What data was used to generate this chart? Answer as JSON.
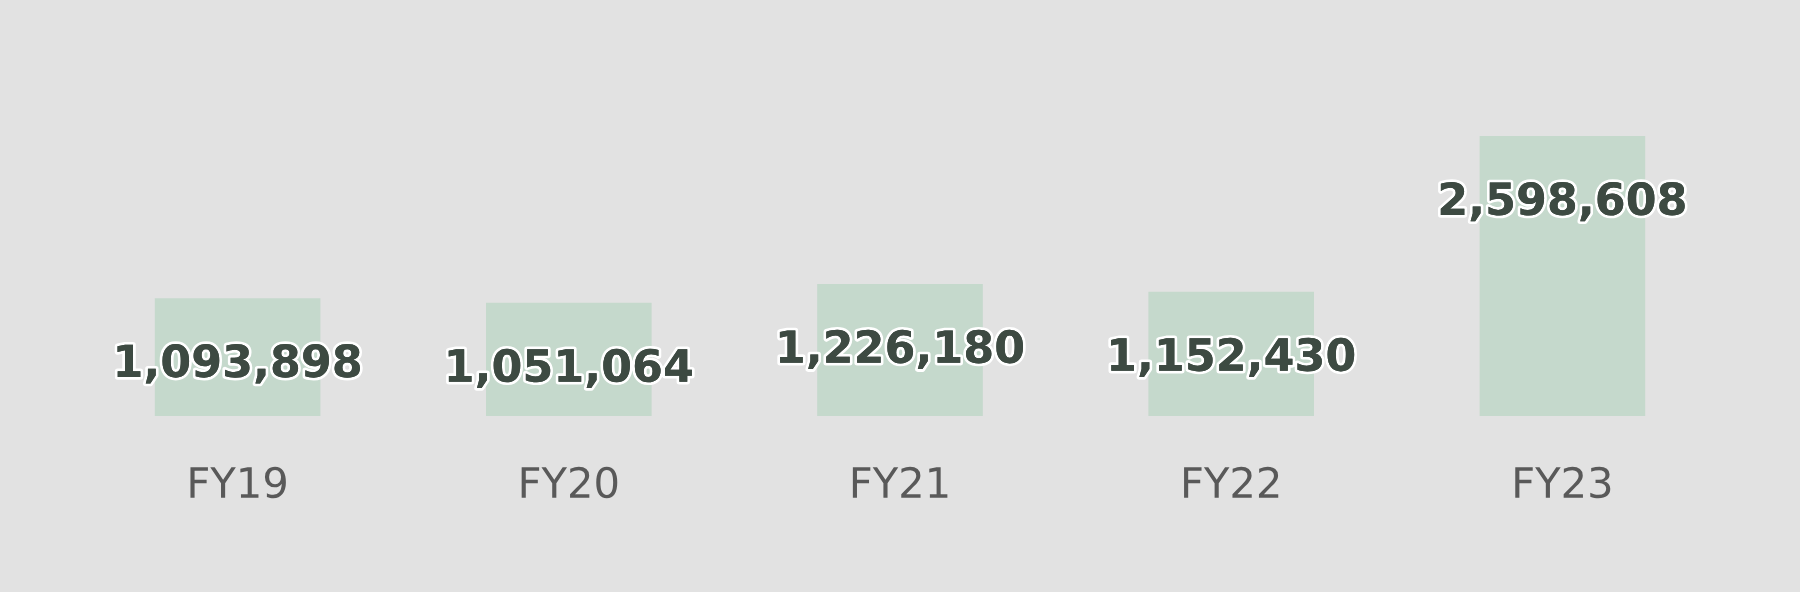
{
  "chart_data": {
    "type": "bar",
    "categories": [
      "FY19",
      "FY20",
      "FY21",
      "FY22",
      "FY23"
    ],
    "values": [
      1093898,
      1051064,
      1226180,
      1152430,
      2598608
    ],
    "value_labels": [
      "1,093,898",
      "1,051,064",
      "1,226,180",
      "1,152,430",
      "2,598,608"
    ],
    "color": "#c5d9cc",
    "grid": false,
    "legend": false,
    "tick_labels": "x"
  }
}
